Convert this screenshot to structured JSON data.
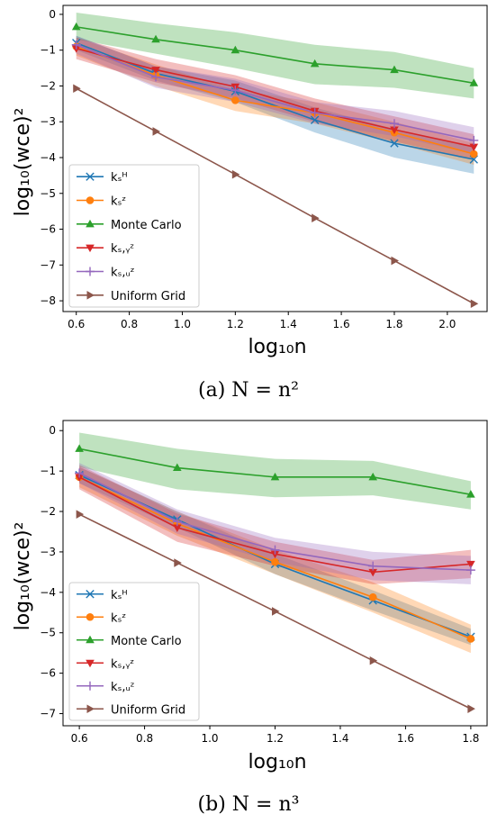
{
  "chart_data": [
    {
      "type": "line",
      "caption": "(a) N = n²",
      "xlabel": "log₁₀n",
      "ylabel": "log₁₀(wce)²",
      "xlim": [
        0.55,
        2.15
      ],
      "ylim": [
        -8.3,
        0.25
      ],
      "xticks": [
        0.6,
        0.8,
        1.0,
        1.2,
        1.4,
        1.6,
        1.8,
        2.0
      ],
      "xtick_labels": [
        "0.6",
        "0.8",
        "1.0",
        "1.2",
        "1.4",
        "1.6",
        "1.8",
        "2.0"
      ],
      "yticks": [
        0,
        -1,
        -2,
        -3,
        -4,
        -5,
        -6,
        -7,
        -8
      ],
      "ytick_labels": [
        "0",
        "−1",
        "−2",
        "−3",
        "−4",
        "−5",
        "−6",
        "−7",
        "−8"
      ],
      "x": [
        0.6,
        0.9,
        1.2,
        1.5,
        1.8,
        2.1
      ],
      "legend_position": "lower-left",
      "series": [
        {
          "name": "kₛᴴ",
          "color": "#1f77b4",
          "marker": "x",
          "values": [
            -0.8,
            -1.65,
            -2.15,
            -2.95,
            -3.6,
            -4.05
          ],
          "lower": [
            -1.0,
            -1.85,
            -2.45,
            -3.3,
            -4.0,
            -4.45
          ],
          "upper": [
            -0.6,
            -1.45,
            -1.85,
            -2.6,
            -3.2,
            -3.7
          ]
        },
        {
          "name": "kₛᶻ",
          "color": "#ff7f0e",
          "marker": "o",
          "values": [
            -0.9,
            -1.7,
            -2.4,
            -2.75,
            -3.3,
            -3.9
          ],
          "lower": [
            -1.15,
            -2.0,
            -2.7,
            -3.05,
            -3.6,
            -4.2
          ],
          "upper": [
            -0.65,
            -1.4,
            -2.1,
            -2.45,
            -3.0,
            -3.6
          ]
        },
        {
          "name": "Monte Carlo",
          "color": "#2ca02c",
          "marker": "^",
          "values": [
            -0.35,
            -0.7,
            -1.0,
            -1.38,
            -1.55,
            -1.92
          ],
          "lower": [
            -0.7,
            -1.1,
            -1.5,
            -1.95,
            -2.05,
            -2.35
          ],
          "upper": [
            0.05,
            -0.25,
            -0.5,
            -0.85,
            -1.05,
            -1.5
          ]
        },
        {
          "name": "kₛ,ᵧᶻ",
          "color": "#d62728",
          "marker": "v",
          "values": [
            -0.95,
            -1.55,
            -2.02,
            -2.7,
            -3.22,
            -3.7
          ],
          "lower": [
            -1.25,
            -1.9,
            -2.35,
            -3.0,
            -3.55,
            -4.05
          ],
          "upper": [
            -0.65,
            -1.25,
            -1.7,
            -2.35,
            -2.85,
            -3.35
          ]
        },
        {
          "name": "kₛ,ᵤᶻ",
          "color": "#9467bd",
          "marker": "+",
          "values": [
            -0.85,
            -1.75,
            -2.12,
            -2.75,
            -3.05,
            -3.52
          ],
          "lower": [
            -1.1,
            -2.05,
            -2.45,
            -3.05,
            -3.4,
            -3.9
          ],
          "upper": [
            -0.6,
            -1.45,
            -1.8,
            -2.45,
            -2.7,
            -3.15
          ]
        },
        {
          "name": "Uniform Grid",
          "color": "#8c564b",
          "marker": ">",
          "values": [
            -2.07,
            -3.27,
            -4.47,
            -5.69,
            -6.88,
            -8.08
          ]
        }
      ]
    },
    {
      "type": "line",
      "caption": "(b) N = n³",
      "xlabel": "log₁₀n",
      "ylabel": "log₁₀(wce)²",
      "xlim": [
        0.55,
        1.85
      ],
      "ylim": [
        -7.3,
        0.25
      ],
      "xticks": [
        0.6,
        0.8,
        1.0,
        1.2,
        1.4,
        1.6,
        1.8
      ],
      "xtick_labels": [
        "0.6",
        "0.8",
        "1.0",
        "1.2",
        "1.4",
        "1.6",
        "1.8"
      ],
      "yticks": [
        0,
        -1,
        -2,
        -3,
        -4,
        -5,
        -6,
        -7
      ],
      "ytick_labels": [
        "0",
        "−1",
        "−2",
        "−3",
        "−4",
        "−5",
        "−6",
        "−7"
      ],
      "x": [
        0.6,
        0.9,
        1.2,
        1.5,
        1.8
      ],
      "legend_position": "lower-left",
      "series": [
        {
          "name": "kₛᴴ",
          "color": "#1f77b4",
          "marker": "x",
          "values": [
            -1.1,
            -2.2,
            -3.3,
            -4.2,
            -5.1
          ],
          "lower": [
            -1.3,
            -2.4,
            -3.55,
            -4.45,
            -5.3
          ],
          "upper": [
            -0.9,
            -2.0,
            -3.05,
            -3.95,
            -4.9
          ]
        },
        {
          "name": "kₛᶻ",
          "color": "#ff7f0e",
          "marker": "o",
          "values": [
            -1.15,
            -2.3,
            -3.25,
            -4.12,
            -5.15
          ],
          "lower": [
            -1.4,
            -2.6,
            -3.55,
            -4.5,
            -5.5
          ],
          "upper": [
            -0.9,
            -2.0,
            -2.95,
            -3.75,
            -4.8
          ]
        },
        {
          "name": "Monte Carlo",
          "color": "#2ca02c",
          "marker": "^",
          "values": [
            -0.45,
            -0.92,
            -1.15,
            -1.15,
            -1.58
          ],
          "lower": [
            -0.9,
            -1.45,
            -1.65,
            -1.6,
            -1.95
          ],
          "upper": [
            -0.05,
            -0.45,
            -0.7,
            -0.75,
            -1.25
          ]
        },
        {
          "name": "kₛ,ᵧᶻ",
          "color": "#d62728",
          "marker": "v",
          "values": [
            -1.15,
            -2.4,
            -3.05,
            -3.5,
            -3.3
          ],
          "lower": [
            -1.45,
            -2.75,
            -3.35,
            -3.8,
            -3.65
          ],
          "upper": [
            -0.85,
            -2.05,
            -2.75,
            -3.2,
            -2.95
          ]
        },
        {
          "name": "kₛ,ᵤᶻ",
          "color": "#9467bd",
          "marker": "+",
          "values": [
            -1.05,
            -2.25,
            -2.95,
            -3.35,
            -3.45
          ],
          "lower": [
            -1.3,
            -2.55,
            -3.25,
            -3.7,
            -3.8
          ],
          "upper": [
            -0.8,
            -1.95,
            -2.65,
            -3.0,
            -3.1
          ]
        },
        {
          "name": "Uniform Grid",
          "color": "#8c564b",
          "marker": ">",
          "values": [
            -2.07,
            -3.27,
            -4.47,
            -5.69,
            -6.88
          ]
        }
      ]
    }
  ]
}
